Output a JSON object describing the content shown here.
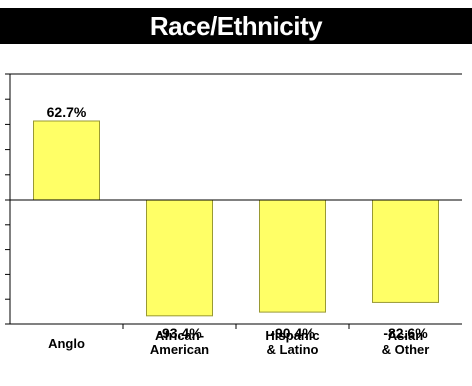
{
  "chart_data": {
    "type": "bar",
    "title": "Race/Ethnicity",
    "categories": [
      [
        "Anglo"
      ],
      [
        "African-",
        "American"
      ],
      [
        "Hispanic",
        "& Latino"
      ],
      [
        "Asian",
        "& Other"
      ]
    ],
    "values": [
      62.7,
      -93.4,
      -90.4,
      -82.6
    ],
    "data_labels": [
      "62.7%",
      "-93.4%",
      "-90.4%",
      "-82.6%"
    ],
    "ylim": [
      -100,
      100
    ],
    "xlabel": "",
    "ylabel": "",
    "grid": false,
    "colors": {
      "bar_fill": "#ffff66",
      "bar_stroke": "#999933",
      "axis": "#000000",
      "title_bg": "#000000",
      "title_text": "#ffffff"
    }
  }
}
